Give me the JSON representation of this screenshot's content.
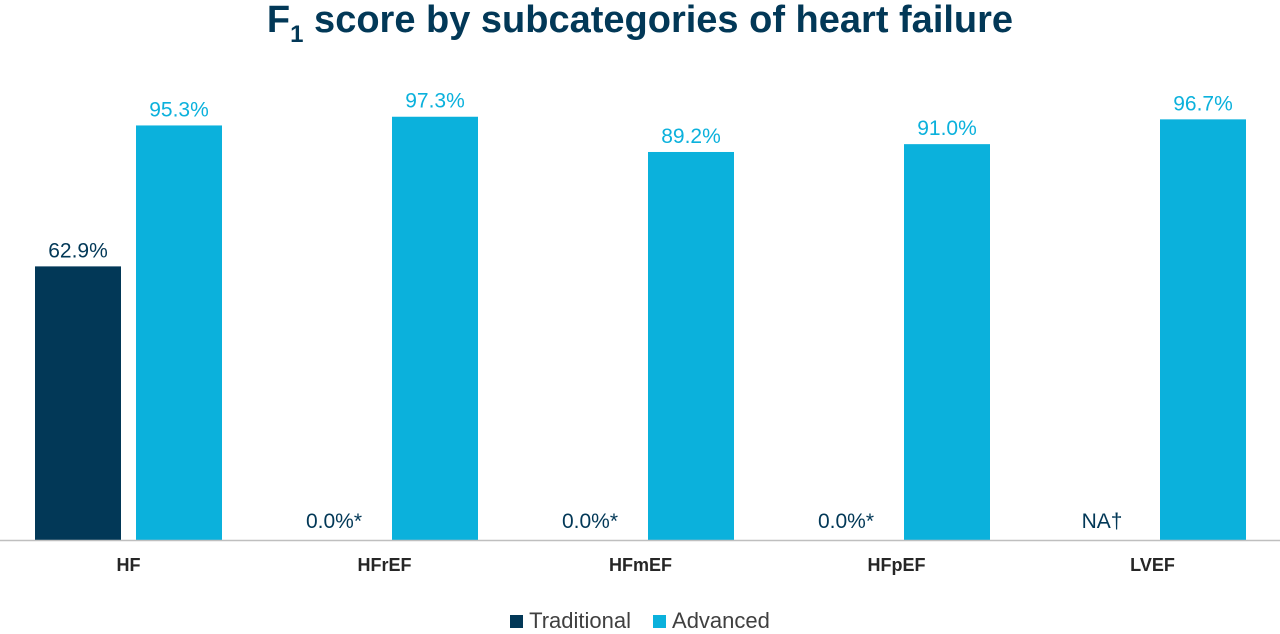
{
  "chart_data": {
    "type": "bar",
    "title": "F",
    "title_subscript": "1",
    "title_rest": " score by subcategories of heart failure",
    "categories": [
      "HF",
      "HFrEF",
      "HFmEF",
      "HFpEF",
      "LVEF"
    ],
    "series": [
      {
        "name": "Traditional",
        "color": "#023857",
        "values": [
          62.9,
          0.0,
          0.0,
          0.0,
          null
        ],
        "labels": [
          "62.9%",
          "0.0%*",
          "0.0%*",
          "0.0%*",
          "NA†"
        ]
      },
      {
        "name": "Advanced",
        "color": "#0BB1DC",
        "values": [
          95.3,
          97.3,
          89.2,
          91.0,
          96.7
        ],
        "labels": [
          "95.3%",
          "97.3%",
          "89.2%",
          "91.0%",
          "96.7%"
        ]
      }
    ],
    "ylim": [
      0,
      100
    ],
    "grid": false,
    "legend_position": "bottom",
    "title_color": "#023857",
    "axis_color": "#bfbfbf"
  }
}
